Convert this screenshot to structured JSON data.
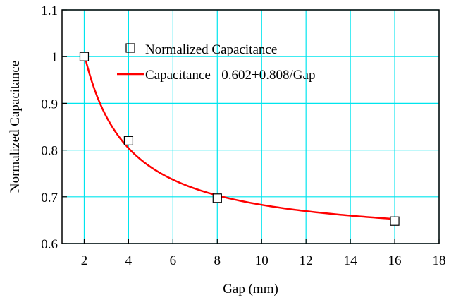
{
  "chart_data": {
    "type": "scatter",
    "title": "",
    "xlabel": "Gap (mm)",
    "ylabel": "Normalized Capacitance",
    "xlim": [
      1,
      18
    ],
    "ylim": [
      0.6,
      1.1
    ],
    "x_ticks": [
      2,
      4,
      6,
      8,
      10,
      12,
      14,
      16,
      18
    ],
    "x_tick_labels": [
      "2",
      "4",
      "6",
      "8",
      "10",
      "12",
      "14",
      "16",
      "18"
    ],
    "y_ticks": [
      0.6,
      0.7,
      0.8,
      0.9,
      1.0,
      1.1
    ],
    "y_tick_labels": [
      "0.6",
      "0.7",
      "0.8",
      "0.9",
      "1",
      "1.1"
    ],
    "grid": true,
    "legend_position": "top-right",
    "series": [
      {
        "name": "Normalized Capacitance",
        "type": "scatter",
        "marker": "open-square",
        "color": "#000000",
        "x": [
          2,
          4,
          8,
          16
        ],
        "y": [
          1.0,
          0.82,
          0.697,
          0.648
        ]
      },
      {
        "name": "Capacitance =0.602+0.808/Gap",
        "type": "line",
        "color": "#ff0000",
        "equation": {
          "intercept": 0.602,
          "coefficient": 0.808
        },
        "x_range": [
          2,
          16
        ]
      }
    ],
    "colors": {
      "grid": "#00e5ee",
      "axis": "#000000",
      "fit_line": "#ff0000"
    }
  }
}
